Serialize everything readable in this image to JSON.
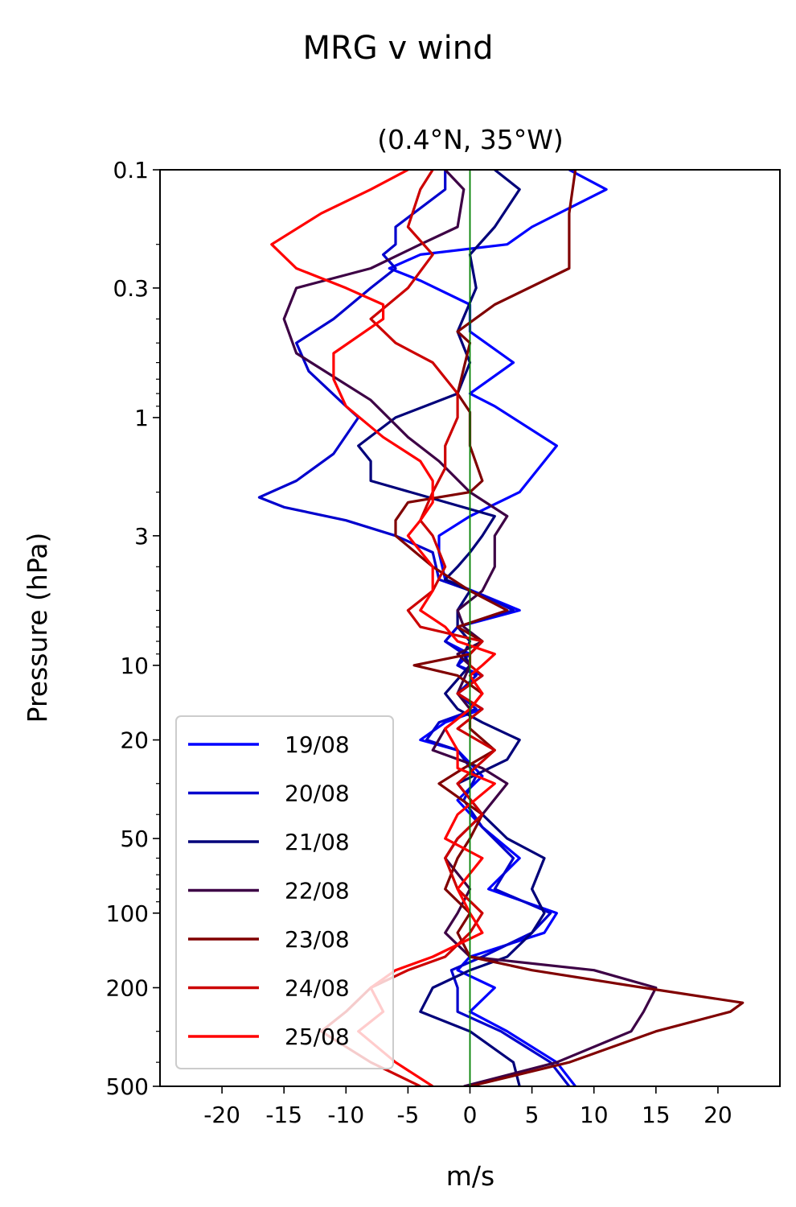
{
  "chart_data": {
    "type": "line",
    "title": "MRG v wind",
    "subtitle": "(0.4°N, 35°W)",
    "xlabel": "m/s",
    "ylabel": "Pressure (hPa)",
    "xlim": [
      -25,
      25
    ],
    "ylim": [
      500,
      0.1
    ],
    "yscale": "log",
    "y_inverted": true,
    "x_ticks": [
      -20,
      -15,
      -10,
      -5,
      0,
      5,
      10,
      15,
      20
    ],
    "x_tick_labels": [
      "-20",
      "-15",
      "-10",
      "-5",
      "0",
      "5",
      "10",
      "15",
      "20"
    ],
    "y_ticks": [
      0.1,
      0.3,
      1,
      3,
      10,
      20,
      50,
      100,
      200,
      500
    ],
    "y_tick_labels": [
      "0.1",
      "0.3",
      "1",
      "3",
      "10",
      "20",
      "50",
      "100",
      "200",
      "500"
    ],
    "zero_line_color": "#008000",
    "grid": false,
    "legend_position": "lower-left",
    "series": [
      {
        "name": "19/08",
        "color": "#0000ff",
        "points": [
          [
            8.5,
            500
          ],
          [
            7,
            400
          ],
          [
            3,
            300
          ],
          [
            0,
            250
          ],
          [
            2,
            200
          ],
          [
            -1,
            170
          ],
          [
            0,
            150
          ],
          [
            6,
            120
          ],
          [
            7,
            100
          ],
          [
            1.5,
            80
          ],
          [
            4,
            60
          ],
          [
            1,
            45
          ],
          [
            -1,
            35
          ],
          [
            1,
            28
          ],
          [
            -1,
            22
          ],
          [
            -4,
            20
          ],
          [
            -2,
            17
          ],
          [
            1,
            15
          ],
          [
            -1,
            13
          ],
          [
            1,
            11
          ],
          [
            -1,
            10
          ],
          [
            0,
            9
          ],
          [
            -2,
            8
          ],
          [
            -1,
            7
          ],
          [
            4,
            6
          ],
          [
            1,
            5.2
          ],
          [
            -2,
            4.5
          ],
          [
            -2.5,
            3.5
          ],
          [
            -2.5,
            3
          ],
          [
            0,
            2.5
          ],
          [
            4,
            2
          ],
          [
            7,
            1.3
          ],
          [
            2,
            0.9
          ],
          [
            0,
            0.8
          ],
          [
            3.5,
            0.6
          ],
          [
            0,
            0.45
          ],
          [
            0,
            0.35
          ],
          [
            -4,
            0.28
          ],
          [
            -6.5,
            0.25
          ],
          [
            -4,
            0.22
          ],
          [
            3,
            0.2
          ],
          [
            5,
            0.17
          ],
          [
            11,
            0.12
          ],
          [
            8,
            0.1
          ]
        ]
      },
      {
        "name": "20/08",
        "color": "#0000cd",
        "points": [
          [
            8,
            500
          ],
          [
            6.5,
            400
          ],
          [
            2.5,
            300
          ],
          [
            -1,
            250
          ],
          [
            -1,
            200
          ],
          [
            -1.5,
            170
          ],
          [
            1,
            150
          ],
          [
            5,
            120
          ],
          [
            6.5,
            100
          ],
          [
            2,
            80
          ],
          [
            3.5,
            60
          ],
          [
            1,
            45
          ],
          [
            -0.5,
            35
          ],
          [
            0.5,
            28
          ],
          [
            -1,
            22
          ],
          [
            -3.5,
            20
          ],
          [
            -2.5,
            17
          ],
          [
            0.5,
            15
          ],
          [
            -1,
            13
          ],
          [
            0.5,
            11
          ],
          [
            -1,
            10
          ],
          [
            -0.5,
            9
          ],
          [
            -2,
            8
          ],
          [
            -1,
            7
          ],
          [
            3.5,
            6
          ],
          [
            1,
            5.2
          ],
          [
            -2.5,
            4.5
          ],
          [
            -3,
            3.5
          ],
          [
            -6,
            3
          ],
          [
            -10,
            2.6
          ],
          [
            -15,
            2.3
          ],
          [
            -17,
            2.1
          ],
          [
            -14,
            1.8
          ],
          [
            -11,
            1.4
          ],
          [
            -9,
            1
          ],
          [
            -10,
            0.9
          ],
          [
            -13,
            0.65
          ],
          [
            -14,
            0.5
          ],
          [
            -11,
            0.4
          ],
          [
            -8,
            0.3
          ],
          [
            -6,
            0.25
          ],
          [
            -7,
            0.22
          ],
          [
            -6,
            0.2
          ],
          [
            -6,
            0.17
          ],
          [
            -2,
            0.12
          ],
          [
            -2,
            0.1
          ]
        ]
      },
      {
        "name": "21/08",
        "color": "#00007a",
        "points": [
          [
            4,
            500
          ],
          [
            3.5,
            400
          ],
          [
            0,
            300
          ],
          [
            -4,
            250
          ],
          [
            -3,
            200
          ],
          [
            0,
            170
          ],
          [
            3,
            150
          ],
          [
            5,
            120
          ],
          [
            6,
            100
          ],
          [
            5,
            80
          ],
          [
            6,
            60
          ],
          [
            3,
            50
          ],
          [
            1,
            40
          ],
          [
            -1,
            30
          ],
          [
            3,
            24
          ],
          [
            4,
            20
          ],
          [
            1,
            17
          ],
          [
            -1,
            15
          ],
          [
            -2,
            13
          ],
          [
            0,
            10
          ],
          [
            -0.5,
            9
          ],
          [
            0,
            8
          ],
          [
            -1,
            7
          ],
          [
            -1,
            6
          ],
          [
            0,
            5
          ],
          [
            -2,
            4.5
          ],
          [
            -1,
            4
          ],
          [
            0,
            3.5
          ],
          [
            1,
            3
          ],
          [
            2,
            2.5
          ],
          [
            -8,
            1.8
          ],
          [
            -8,
            1.5
          ],
          [
            -9,
            1.3
          ],
          [
            -6,
            1
          ],
          [
            -1,
            0.8
          ],
          [
            0,
            0.6
          ],
          [
            -1,
            0.45
          ],
          [
            0.5,
            0.3
          ],
          [
            0,
            0.22
          ],
          [
            2,
            0.17
          ],
          [
            4,
            0.12
          ],
          [
            2,
            0.1
          ]
        ]
      },
      {
        "name": "22/08",
        "color": "#3d0045",
        "points": [
          [
            -0.5,
            500
          ],
          [
            7,
            400
          ],
          [
            13,
            300
          ],
          [
            14,
            250
          ],
          [
            15,
            200
          ],
          [
            10,
            170
          ],
          [
            0,
            150
          ],
          [
            -2,
            120
          ],
          [
            -1,
            100
          ],
          [
            0,
            80
          ],
          [
            -2,
            60
          ],
          [
            -1,
            50
          ],
          [
            1,
            40
          ],
          [
            3,
            30
          ],
          [
            1,
            26
          ],
          [
            -3,
            22
          ],
          [
            -2,
            18
          ],
          [
            0,
            15
          ],
          [
            -1,
            13
          ],
          [
            0,
            10
          ],
          [
            -1,
            9
          ],
          [
            1,
            8
          ],
          [
            -0.5,
            7
          ],
          [
            -1,
            6
          ],
          [
            1,
            5
          ],
          [
            2,
            4
          ],
          [
            2,
            3
          ],
          [
            3,
            2.5
          ],
          [
            0,
            2
          ],
          [
            -2.5,
            1.5
          ],
          [
            -5,
            1.2
          ],
          [
            -8,
            0.85
          ],
          [
            -14,
            0.55
          ],
          [
            -15,
            0.4
          ],
          [
            -14,
            0.3
          ],
          [
            -8,
            0.25
          ],
          [
            -4,
            0.2
          ],
          [
            -1,
            0.17
          ],
          [
            -0.5,
            0.12
          ],
          [
            -2,
            0.1
          ]
        ]
      },
      {
        "name": "23/08",
        "color": "#800000",
        "points": [
          [
            0,
            500
          ],
          [
            8,
            400
          ],
          [
            15,
            300
          ],
          [
            21,
            250
          ],
          [
            22,
            230
          ],
          [
            14,
            200
          ],
          [
            5,
            170
          ],
          [
            0,
            150
          ],
          [
            -1,
            120
          ],
          [
            0,
            100
          ],
          [
            -2,
            80
          ],
          [
            -1,
            60
          ],
          [
            0,
            50
          ],
          [
            1,
            40
          ],
          [
            -2.5,
            30
          ],
          [
            -0.5,
            26
          ],
          [
            2,
            22
          ],
          [
            0,
            18
          ],
          [
            0,
            15
          ],
          [
            1,
            13
          ],
          [
            -1,
            11
          ],
          [
            -4.5,
            10
          ],
          [
            0,
            9
          ],
          [
            1,
            8
          ],
          [
            -1,
            7
          ],
          [
            3,
            6
          ],
          [
            0,
            5
          ],
          [
            -3,
            4
          ],
          [
            -6,
            3
          ],
          [
            -6,
            2.6
          ],
          [
            -5,
            2.2
          ],
          [
            0,
            2
          ],
          [
            1,
            1.8
          ],
          [
            0,
            1.3
          ],
          [
            0,
            0.95
          ],
          [
            -1,
            0.8
          ],
          [
            0,
            0.5
          ],
          [
            -1,
            0.45
          ],
          [
            2,
            0.35
          ],
          [
            8,
            0.25
          ],
          [
            8,
            0.15
          ],
          [
            8.5,
            0.1
          ]
        ]
      },
      {
        "name": "24/08",
        "color": "#cc0000",
        "points": [
          [
            -4,
            500
          ],
          [
            -8,
            400
          ],
          [
            -12,
            300
          ],
          [
            -10,
            250
          ],
          [
            -8,
            200
          ],
          [
            -5,
            170
          ],
          [
            -2,
            150
          ],
          [
            0,
            120
          ],
          [
            1,
            100
          ],
          [
            -1,
            80
          ],
          [
            -2,
            60
          ],
          [
            -1,
            50
          ],
          [
            1,
            40
          ],
          [
            -1,
            30
          ],
          [
            2,
            22
          ],
          [
            -1,
            18
          ],
          [
            1,
            15
          ],
          [
            -1,
            13
          ],
          [
            1,
            11
          ],
          [
            0,
            10
          ],
          [
            0,
            9
          ],
          [
            1,
            8
          ],
          [
            -4,
            7
          ],
          [
            -5,
            6
          ],
          [
            -3,
            5
          ],
          [
            -2,
            4
          ],
          [
            -3,
            3
          ],
          [
            -4,
            2.6
          ],
          [
            -3,
            2
          ],
          [
            -2,
            1.6
          ],
          [
            -2,
            1.3
          ],
          [
            -1,
            1
          ],
          [
            -1,
            0.8
          ],
          [
            -3,
            0.6
          ],
          [
            -6,
            0.5
          ],
          [
            -8,
            0.4
          ],
          [
            -5,
            0.3
          ],
          [
            -3,
            0.22
          ],
          [
            -5,
            0.17
          ],
          [
            -4,
            0.12
          ],
          [
            -3,
            0.1
          ]
        ]
      },
      {
        "name": "25/08",
        "color": "#ff0000",
        "points": [
          [
            -3,
            500
          ],
          [
            -6,
            400
          ],
          [
            -9,
            300
          ],
          [
            -7,
            250
          ],
          [
            -8,
            200
          ],
          [
            -6,
            170
          ],
          [
            -3,
            150
          ],
          [
            1,
            120
          ],
          [
            0,
            100
          ],
          [
            -1,
            80
          ],
          [
            1,
            60
          ],
          [
            -2,
            50
          ],
          [
            -1,
            40
          ],
          [
            2,
            30
          ],
          [
            -1,
            26
          ],
          [
            -1,
            22
          ],
          [
            -2,
            18
          ],
          [
            0,
            15
          ],
          [
            1,
            13
          ],
          [
            0,
            11
          ],
          [
            1,
            10
          ],
          [
            2,
            9
          ],
          [
            -1,
            8
          ],
          [
            -2,
            7
          ],
          [
            -4,
            6
          ],
          [
            -3,
            5
          ],
          [
            -3,
            4
          ],
          [
            -5,
            3
          ],
          [
            -4,
            2.6
          ],
          [
            -3,
            2.2
          ],
          [
            -3,
            1.8
          ],
          [
            -4,
            1.5
          ],
          [
            -7,
            1.2
          ],
          [
            -10,
            0.9
          ],
          [
            -11,
            0.7
          ],
          [
            -11,
            0.55
          ],
          [
            -7,
            0.4
          ],
          [
            -7,
            0.35
          ],
          [
            -10,
            0.3
          ],
          [
            -14,
            0.25
          ],
          [
            -16,
            0.2
          ],
          [
            -12,
            0.15
          ],
          [
            -8,
            0.12
          ],
          [
            -5,
            0.1
          ]
        ]
      }
    ]
  }
}
